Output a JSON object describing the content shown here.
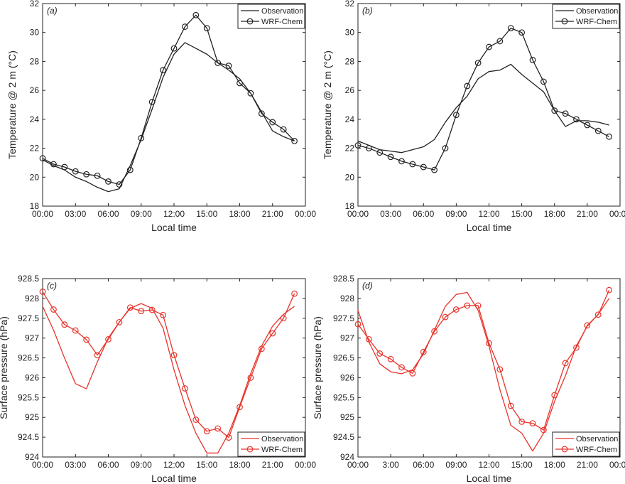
{
  "chart_data": [
    {
      "type": "line",
      "panel_label": "(a)",
      "xlabel": "Local time",
      "ylabel": "Temperature @ 2 m (°C)",
      "xlim": [
        0,
        24
      ],
      "ylim": [
        18,
        32
      ],
      "x_ticks": [
        0,
        3,
        6,
        9,
        12,
        15,
        18,
        21,
        24
      ],
      "x_tick_labels": [
        "00:00",
        "03:00",
        "06:00",
        "09:00",
        "12:00",
        "15:00",
        "18:00",
        "21:00",
        "00:00"
      ],
      "y_ticks": [
        18,
        20,
        22,
        24,
        26,
        28,
        30,
        32
      ],
      "y_tick_labels": [
        "18",
        "20",
        "22",
        "24",
        "26",
        "28",
        "30",
        "32"
      ],
      "legend": {
        "placement": "top-right",
        "entries": [
          "Observation",
          "WRF-Chem"
        ]
      },
      "series": [
        {
          "name": "Observation",
          "color": "#222222",
          "x": [
            0,
            1,
            2,
            3,
            4,
            5,
            6,
            7,
            8,
            9,
            10,
            11,
            12,
            13,
            14,
            15,
            16,
            17,
            18,
            19,
            20,
            21,
            22,
            23
          ],
          "values": [
            21.2,
            20.8,
            20.5,
            20.0,
            19.7,
            19.3,
            19.0,
            19.2,
            20.8,
            22.6,
            24.7,
            26.9,
            28.5,
            29.3,
            28.9,
            28.5,
            27.9,
            27.4,
            26.8,
            25.8,
            24.5,
            23.2,
            22.8,
            22.5
          ]
        },
        {
          "name": "WRF-Chem",
          "color": "#222222",
          "marker": "circle",
          "x": [
            0,
            1,
            2,
            3,
            4,
            5,
            6,
            7,
            8,
            9,
            10,
            11,
            12,
            13,
            14,
            15,
            16,
            17,
            18,
            19,
            20,
            21,
            22,
            23
          ],
          "values": [
            21.3,
            20.9,
            20.7,
            20.4,
            20.2,
            20.1,
            19.7,
            19.5,
            20.5,
            22.7,
            25.2,
            27.4,
            28.9,
            30.4,
            31.2,
            30.3,
            27.9,
            27.7,
            26.5,
            25.8,
            24.4,
            23.8,
            23.3,
            22.5
          ]
        }
      ]
    },
    {
      "type": "line",
      "panel_label": "(b)",
      "xlabel": "Local time",
      "ylabel": "Temperature @ 2 m (°C)",
      "xlim": [
        0,
        24
      ],
      "ylim": [
        18,
        32
      ],
      "x_ticks": [
        0,
        3,
        6,
        9,
        12,
        15,
        18,
        21,
        24
      ],
      "x_tick_labels": [
        "00:00",
        "03:00",
        "06:00",
        "09:00",
        "12:00",
        "15:00",
        "18:00",
        "21:00",
        "00:00"
      ],
      "y_ticks": [
        18,
        20,
        22,
        24,
        26,
        28,
        30,
        32
      ],
      "y_tick_labels": [
        "18",
        "20",
        "22",
        "24",
        "26",
        "28",
        "30",
        "32"
      ],
      "legend": {
        "placement": "top-right",
        "entries": [
          "Observation",
          "WRF-Chem"
        ]
      },
      "series": [
        {
          "name": "Observation",
          "color": "#222222",
          "x": [
            0,
            1,
            2,
            3,
            4,
            5,
            6,
            7,
            8,
            9,
            10,
            11,
            12,
            13,
            14,
            15,
            16,
            17,
            18,
            19,
            20,
            21,
            22,
            23
          ],
          "values": [
            22.5,
            22.2,
            21.9,
            21.8,
            21.7,
            21.9,
            22.1,
            22.6,
            23.8,
            24.8,
            25.6,
            26.8,
            27.3,
            27.4,
            27.8,
            27.1,
            26.5,
            25.9,
            24.6,
            23.5,
            23.9,
            23.9,
            23.8,
            23.6
          ]
        },
        {
          "name": "WRF-Chem",
          "color": "#222222",
          "marker": "circle",
          "x": [
            0,
            1,
            2,
            3,
            4,
            5,
            6,
            7,
            8,
            9,
            10,
            11,
            12,
            13,
            14,
            15,
            16,
            17,
            18,
            19,
            20,
            21,
            22,
            23
          ],
          "values": [
            22.2,
            22.0,
            21.7,
            21.4,
            21.1,
            20.9,
            20.7,
            20.5,
            22.0,
            24.3,
            26.3,
            27.9,
            29.0,
            29.4,
            30.3,
            30.0,
            28.1,
            26.6,
            24.6,
            24.4,
            24.0,
            23.6,
            23.2,
            22.8
          ]
        }
      ]
    },
    {
      "type": "line",
      "panel_label": "(c)",
      "xlabel": "Local time",
      "ylabel": "Surface pressure (hPa)",
      "xlim": [
        0,
        24
      ],
      "ylim": [
        924,
        928.5
      ],
      "x_ticks": [
        0,
        3,
        6,
        9,
        12,
        15,
        18,
        21,
        24
      ],
      "x_tick_labels": [
        "00:00",
        "03:00",
        "06:00",
        "09:00",
        "12:00",
        "15:00",
        "18:00",
        "21:00",
        "00:00"
      ],
      "y_ticks": [
        924,
        924.5,
        925,
        925.5,
        926,
        926.5,
        927,
        927.5,
        928,
        928.5
      ],
      "y_tick_labels": [
        "924",
        "924.5",
        "925",
        "925.5",
        "926",
        "926.5",
        "927",
        "927.5",
        "928",
        "928.5"
      ],
      "legend": {
        "placement": "bottom-right",
        "entries": [
          "Observation",
          "WRF-Chem"
        ]
      },
      "series": [
        {
          "name": "Observation",
          "color": "#e8332a",
          "x": [
            0,
            1,
            2,
            3,
            4,
            5,
            6,
            7,
            8,
            9,
            10,
            11,
            12,
            13,
            14,
            15,
            16,
            17,
            18,
            19,
            20,
            21,
            22,
            23
          ],
          "values": [
            927.8,
            927.2,
            926.5,
            925.85,
            925.72,
            926.4,
            927.0,
            927.4,
            927.75,
            927.87,
            927.75,
            927.25,
            926.2,
            925.3,
            924.6,
            924.1,
            924.1,
            924.6,
            925.3,
            926.1,
            926.8,
            927.3,
            927.6,
            927.8
          ]
        },
        {
          "name": "WRF-Chem",
          "color": "#e8332a",
          "marker": "circle",
          "x": [
            0,
            1,
            2,
            3,
            4,
            5,
            6,
            7,
            8,
            9,
            10,
            11,
            12,
            13,
            14,
            15,
            16,
            17,
            18,
            19,
            20,
            21,
            22,
            23
          ],
          "values": [
            928.17,
            927.72,
            927.34,
            927.19,
            926.96,
            926.57,
            926.97,
            927.4,
            927.77,
            927.68,
            927.71,
            927.58,
            926.57,
            925.73,
            924.94,
            924.65,
            924.72,
            924.49,
            925.26,
            926.0,
            926.73,
            927.12,
            927.5,
            928.12
          ]
        }
      ]
    },
    {
      "type": "line",
      "panel_label": "(d)",
      "xlabel": "Local time",
      "ylabel": "Surface pressure (hPa)",
      "xlim": [
        0,
        24
      ],
      "ylim": [
        924,
        928.5
      ],
      "x_ticks": [
        0,
        3,
        6,
        9,
        12,
        15,
        18,
        21,
        24
      ],
      "x_tick_labels": [
        "00:00",
        "3:00",
        "06:00",
        "09:00",
        "12:00",
        "15:00",
        "18:00",
        "21:00",
        "00:00"
      ],
      "y_ticks": [
        924,
        924.5,
        925,
        925.5,
        926,
        926.5,
        927,
        927.5,
        928,
        928.5
      ],
      "y_tick_labels": [
        "924",
        "924.5",
        "925",
        "925.5",
        "926",
        "926.5",
        "927",
        "927.5",
        "928",
        "928.5"
      ],
      "legend": {
        "placement": "bottom-right",
        "entries": [
          "Observation",
          "WRF-Chem"
        ]
      },
      "series": [
        {
          "name": "Observation",
          "color": "#e8332a",
          "x": [
            0,
            1,
            2,
            3,
            4,
            5,
            6,
            7,
            8,
            9,
            10,
            11,
            12,
            13,
            14,
            15,
            16,
            17,
            18,
            19,
            20,
            21,
            22,
            23
          ],
          "values": [
            927.7,
            926.9,
            926.35,
            926.15,
            926.1,
            926.2,
            926.6,
            927.2,
            927.8,
            928.1,
            928.15,
            927.7,
            926.8,
            925.7,
            924.8,
            924.6,
            924.15,
            924.6,
            925.4,
            926.05,
            926.8,
            927.3,
            927.6,
            928.0
          ]
        },
        {
          "name": "WRF-Chem",
          "color": "#e8332a",
          "marker": "circle",
          "x": [
            0,
            1,
            2,
            3,
            4,
            5,
            6,
            7,
            8,
            9,
            10,
            11,
            12,
            13,
            14,
            15,
            16,
            17,
            18,
            19,
            20,
            21,
            22,
            23
          ],
          "values": [
            927.35,
            926.97,
            926.61,
            926.47,
            926.26,
            926.11,
            926.65,
            927.17,
            927.53,
            927.72,
            927.82,
            927.82,
            926.87,
            926.21,
            925.29,
            924.89,
            924.85,
            924.68,
            925.56,
            926.37,
            926.76,
            927.32,
            927.59,
            928.21
          ]
        }
      ]
    }
  ]
}
